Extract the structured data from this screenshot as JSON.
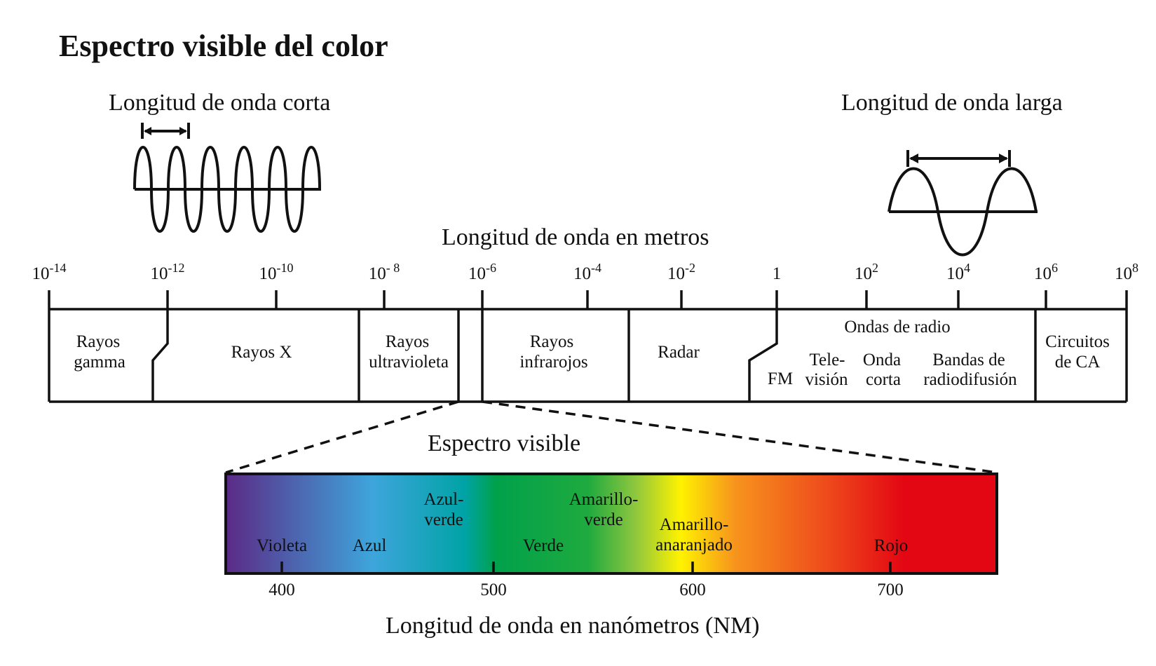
{
  "title": "Espectro visible del color",
  "short_wave_label": "Longitud de onda corta",
  "long_wave_label": "Longitud de onda larga",
  "meters_label": "Longitud de onda en metros",
  "visible_label": "Espectro visible",
  "nm_label": "Longitud de onda en nanómetros (NM)",
  "meter_ticks": [
    {
      "base": "10",
      "exp": "-14"
    },
    {
      "base": "10",
      "exp": "-12"
    },
    {
      "base": "10",
      "exp": "-10"
    },
    {
      "base": "10",
      "exp": "- 8"
    },
    {
      "base": "10",
      "exp": "-6"
    },
    {
      "base": "10",
      "exp": "-4"
    },
    {
      "base": "10",
      "exp": "-2"
    },
    {
      "base": "1",
      "exp": ""
    },
    {
      "base": "10",
      "exp": "2"
    },
    {
      "base": "10",
      "exp": "4"
    },
    {
      "base": "10",
      "exp": "6"
    },
    {
      "base": "10",
      "exp": "8"
    }
  ],
  "bands": {
    "gamma": [
      "Rayos",
      "gamma"
    ],
    "xrays": "Rayos X",
    "uv": [
      "Rayos",
      "ultravioleta"
    ],
    "ir": [
      "Rayos",
      "infrarojos"
    ],
    "radar": "Radar",
    "radio": "Ondas de radio",
    "fm": "FM",
    "tv": [
      "Tele-",
      "visión"
    ],
    "shortwave": [
      "Onda",
      "corta"
    ],
    "broadcast": [
      "Bandas de",
      "radiodifusión"
    ],
    "ac": [
      "Circuitos",
      "de CA"
    ]
  },
  "colors": {
    "violet": "Violeta",
    "blue": "Azul",
    "bluegreen": [
      "Azul-",
      "verde"
    ],
    "green": "Verde",
    "yellowgreen": [
      "Amarillo-",
      "verde"
    ],
    "yelloworange": [
      "Amarillo-",
      "anaranjado"
    ],
    "red": "Rojo"
  },
  "nm_ticks": [
    "400",
    "500",
    "600",
    "700"
  ],
  "gradient_colors": [
    "#5b2a86",
    "#3ea5dc",
    "#00a14b",
    "#8cc63f",
    "#fff200",
    "#f7941d",
    "#ed1c24",
    "#e30613"
  ]
}
